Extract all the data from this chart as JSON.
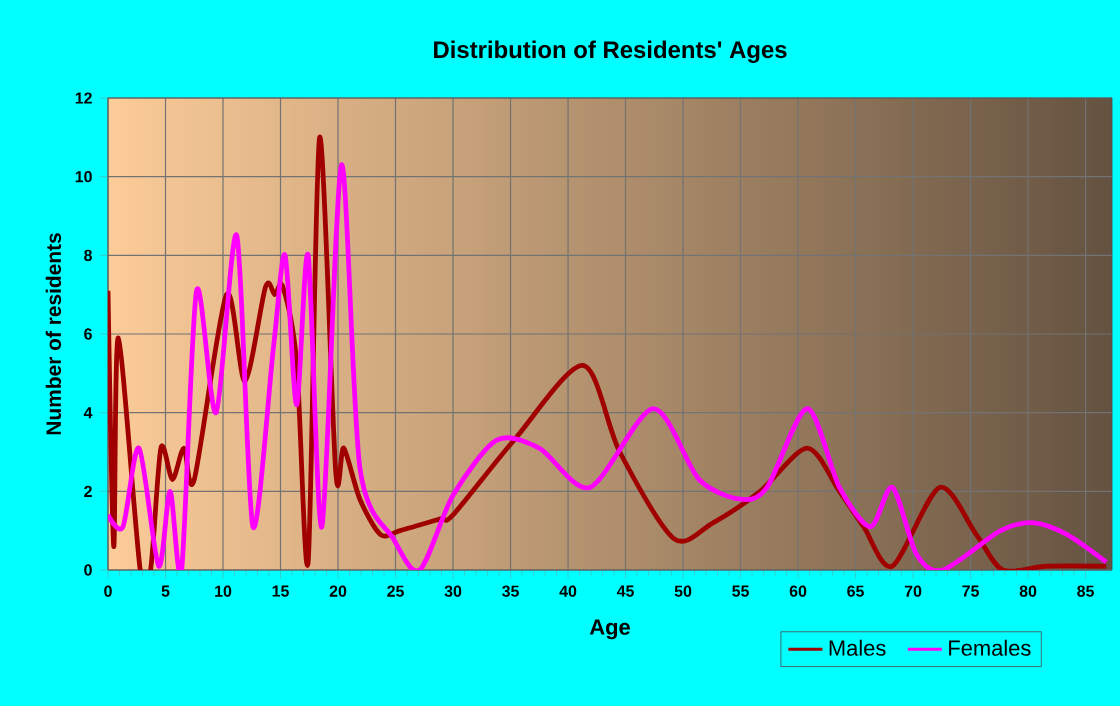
{
  "chart_data": {
    "type": "line",
    "title": "Distribution of Residents' Ages",
    "xlabel": "Age",
    "ylabel": "Number of residents",
    "xlim": [
      0,
      87.3
    ],
    "ylim": [
      0,
      12
    ],
    "xticks": [
      0,
      5,
      10,
      15,
      20,
      25,
      30,
      35,
      40,
      45,
      50,
      55,
      60,
      65,
      70,
      75,
      80,
      85
    ],
    "yticks": [
      0,
      2,
      4,
      6,
      8,
      10,
      12
    ],
    "grid": true,
    "legend": "bottom right",
    "marker": "none",
    "line_style": "solid",
    "series": [
      {
        "name": "Males",
        "color": "#a00000",
        "x": [
          0,
          0.5,
          0.9,
          2.8,
          3.7,
          4.6,
          5.6,
          6.6,
          7.5,
          10.3,
          11.9,
          13.7,
          14.5,
          15.2,
          16.4,
          17.4,
          18.4,
          19.8,
          20.5,
          21.9,
          23.7,
          25.4,
          28.9,
          30,
          35.3,
          41.3,
          44.5,
          49.2,
          52.6,
          56.7,
          60.8,
          63.6,
          65.7,
          68.2,
          72.3,
          75.5,
          77.8,
          81.6,
          86.8
        ],
        "values": [
          7.1,
          0.6,
          5.9,
          0,
          0,
          3.1,
          2.3,
          3.1,
          2.3,
          7.0,
          4.8,
          7.2,
          7.0,
          7.2,
          5.3,
          0.2,
          11.0,
          2.5,
          3.1,
          1.8,
          0.9,
          1.0,
          1.3,
          1.4,
          3.3,
          5.2,
          3.0,
          0.8,
          1.2,
          2.0,
          3.1,
          2.0,
          1.1,
          0.1,
          2.1,
          0.9,
          0,
          0.1,
          0.1
        ]
      },
      {
        "name": "Females",
        "color": "#ff00ff",
        "x": [
          0,
          1.3,
          2.7,
          4.4,
          5.4,
          6.4,
          7.7,
          9.4,
          11.2,
          12.6,
          14.4,
          15.4,
          16.4,
          17.4,
          18.6,
          20.3,
          21.9,
          24.8,
          27.1,
          30,
          33.8,
          37.5,
          41.9,
          47.4,
          51.4,
          55,
          57.3,
          60.8,
          63.6,
          66.3,
          68.2,
          70.3,
          72.6,
          77.6,
          80.5,
          83.4,
          86.8
        ],
        "values": [
          1.4,
          1.1,
          3.1,
          0.1,
          2.0,
          0,
          7.1,
          4.0,
          8.5,
          1.1,
          5.7,
          8.0,
          4.2,
          8.0,
          1.1,
          10.3,
          2.6,
          0.8,
          0,
          1.9,
          3.3,
          3.1,
          2.1,
          4.1,
          2.3,
          1.8,
          2.1,
          4.1,
          2.1,
          1.1,
          2.1,
          0.4,
          0,
          1.0,
          1.2,
          0.9,
          0.2
        ]
      }
    ]
  }
}
